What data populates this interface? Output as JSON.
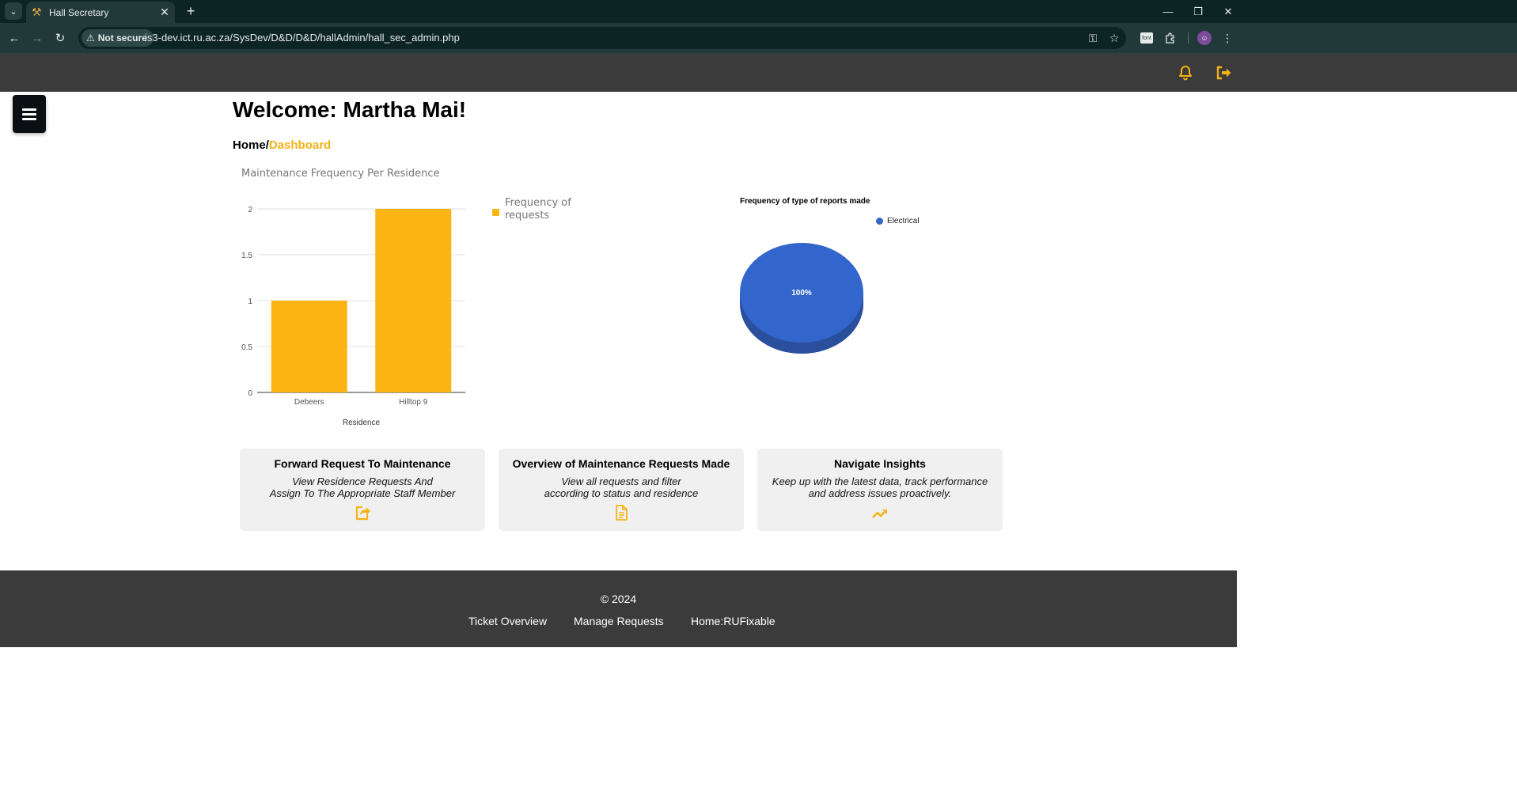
{
  "browser": {
    "tab_title": "Hall Secretary",
    "security_label": "Not secure",
    "url": "is3-dev.ict.ru.ac.za/SysDev/D&D/D&D/hallAdmin/hall_sec_admin.php",
    "font_ext_label": "font"
  },
  "page": {
    "welcome": "Welcome: Martha Mai!",
    "breadcrumb": {
      "home": "Home",
      "separator": "/",
      "current": "Dashboard"
    }
  },
  "bar_chart": {
    "title": "Maintenance Frequency Per Residence",
    "legend": "Frequency of requests",
    "xlabel": "Residence"
  },
  "pie_chart": {
    "title": "Frequency of type of reports made",
    "legend": "Electrical",
    "slice_label": "100%"
  },
  "chart_data": [
    {
      "type": "bar",
      "title": "Maintenance Frequency Per Residence",
      "categories": [
        "Debeers",
        "Hilltop 9"
      ],
      "series": [
        {
          "name": "Frequency of requests",
          "values": [
            1,
            2
          ]
        }
      ],
      "xlabel": "Residence",
      "ylabel": "",
      "ylim": [
        0,
        2
      ],
      "yticks": [
        "0",
        "0.5",
        "1",
        "1.5",
        "2"
      ],
      "color": "#fdb515",
      "grid": true,
      "legend_position": "right"
    },
    {
      "type": "pie",
      "title": "Frequency of type of reports made",
      "labels": [
        "Electrical"
      ],
      "values": [
        100
      ],
      "color": "#3366cc",
      "legend_position": "top-right"
    }
  ],
  "cards": [
    {
      "title": "Forward Request To Maintenance",
      "desc": "View Residence Requests And\nAssign To The Appropriate Staff Member",
      "icon": "share-icon"
    },
    {
      "title": "Overview of Maintenance Requests Made",
      "desc": "View all requests and filter\naccording to status and residence",
      "icon": "document-icon"
    },
    {
      "title": "Navigate Insights",
      "desc": "Keep up with the latest data, track performance\nand address issues proactively.",
      "icon": "trending-up-icon"
    }
  ],
  "footer": {
    "copyright": "© 2024",
    "links": [
      "Ticket Overview",
      "Manage Requests",
      "Home:RUFixable"
    ]
  },
  "colors": {
    "accent": "#f5b316",
    "bar": "#fdb515",
    "pie": "#3366cc",
    "header_bg": "#3b3b3b"
  }
}
